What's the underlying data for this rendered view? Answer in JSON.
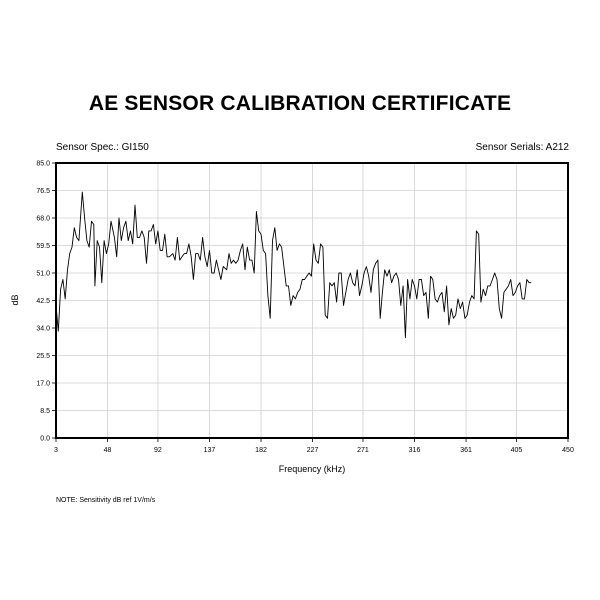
{
  "header": {
    "title": "AE SENSOR CALIBRATION CERTIFICATE",
    "sensor_spec": "Sensor Spec.: GI150",
    "sensor_serials": "Sensor Serials: A212"
  },
  "footer": {
    "note": "NOTE:  Sensitivity dB ref 1V/m/s"
  },
  "chart_data": {
    "type": "line",
    "xlabel": "Frequency (kHz)",
    "ylabel": "dB",
    "xlim": [
      3,
      450
    ],
    "ylim": [
      0,
      85
    ],
    "x_ticks": [
      3,
      48,
      92,
      137,
      182,
      227,
      271,
      316,
      361,
      405,
      450
    ],
    "y_ticks": [
      0.0,
      8.5,
      17.0,
      25.5,
      34.0,
      42.5,
      51.0,
      59.5,
      68.0,
      76.5,
      85.0
    ],
    "x_tick_labels": [
      "3",
      "48",
      "92",
      "137",
      "182",
      "227",
      "271",
      "316",
      "361",
      "405",
      "450"
    ],
    "y_tick_labels": [
      "0.0",
      "8.5",
      "17.0",
      "25.5",
      "34.0",
      "42.5",
      "51.0",
      "59.5",
      "68.0",
      "76.5",
      "85.0"
    ],
    "grid": true,
    "series": [
      {
        "values": [
          [
            3,
            41
          ],
          [
            5,
            33
          ],
          [
            7,
            46
          ],
          [
            9,
            49
          ],
          [
            11,
            43
          ],
          [
            13,
            52
          ],
          [
            15,
            57
          ],
          [
            17,
            59
          ],
          [
            19,
            65
          ],
          [
            21,
            62
          ],
          [
            23,
            61
          ],
          [
            26,
            76
          ],
          [
            28,
            68
          ],
          [
            30,
            61
          ],
          [
            32,
            59
          ],
          [
            34,
            67
          ],
          [
            36,
            66
          ],
          [
            37,
            47
          ],
          [
            39,
            61
          ],
          [
            41,
            59
          ],
          [
            43,
            48
          ],
          [
            45,
            61
          ],
          [
            47,
            57
          ],
          [
            49,
            60
          ],
          [
            51,
            67
          ],
          [
            54,
            62
          ],
          [
            56,
            56
          ],
          [
            58,
            68
          ],
          [
            60,
            61
          ],
          [
            62,
            65
          ],
          [
            64,
            67
          ],
          [
            66,
            61
          ],
          [
            68,
            64
          ],
          [
            70,
            60
          ],
          [
            72,
            72
          ],
          [
            74,
            62
          ],
          [
            76,
            62
          ],
          [
            78,
            64
          ],
          [
            80,
            62
          ],
          [
            82,
            54
          ],
          [
            84,
            64
          ],
          [
            86,
            64
          ],
          [
            88,
            66
          ],
          [
            90,
            60
          ],
          [
            92,
            64
          ],
          [
            94,
            58
          ],
          [
            96,
            58
          ],
          [
            98,
            63
          ],
          [
            100,
            56
          ],
          [
            102,
            56
          ],
          [
            105,
            57
          ],
          [
            107,
            55
          ],
          [
            109,
            62
          ],
          [
            111,
            55
          ],
          [
            113,
            56
          ],
          [
            115,
            57
          ],
          [
            117,
            57
          ],
          [
            119,
            60
          ],
          [
            121,
            56
          ],
          [
            123,
            49
          ],
          [
            125,
            57
          ],
          [
            127,
            57
          ],
          [
            129,
            55
          ],
          [
            131,
            62
          ],
          [
            133,
            56
          ],
          [
            135,
            53
          ],
          [
            137,
            58
          ],
          [
            139,
            51
          ],
          [
            141,
            51
          ],
          [
            143,
            55
          ],
          [
            145,
            52
          ],
          [
            147,
            49
          ],
          [
            149,
            53
          ],
          [
            152,
            52
          ],
          [
            154,
            57
          ],
          [
            156,
            54
          ],
          [
            158,
            55
          ],
          [
            160,
            54
          ],
          [
            162,
            55
          ],
          [
            164,
            58
          ],
          [
            166,
            60
          ],
          [
            168,
            52
          ],
          [
            170,
            59
          ],
          [
            172,
            55
          ],
          [
            174,
            55
          ],
          [
            176,
            51
          ],
          [
            178,
            70
          ],
          [
            180,
            64
          ],
          [
            182,
            63
          ],
          [
            184,
            58
          ],
          [
            186,
            57
          ],
          [
            188,
            44
          ],
          [
            190,
            37
          ],
          [
            192,
            61
          ],
          [
            194,
            65
          ],
          [
            196,
            58
          ],
          [
            198,
            60
          ],
          [
            200,
            59
          ],
          [
            202,
            53
          ],
          [
            204,
            47
          ],
          [
            206,
            47
          ],
          [
            208,
            41
          ],
          [
            210,
            44
          ],
          [
            212,
            43
          ],
          [
            214,
            45
          ],
          [
            216,
            46
          ],
          [
            218,
            49
          ],
          [
            220,
            49
          ],
          [
            222,
            50
          ],
          [
            224,
            51
          ],
          [
            226,
            50
          ],
          [
            228,
            60
          ],
          [
            230,
            55
          ],
          [
            232,
            54
          ],
          [
            234,
            60
          ],
          [
            236,
            59
          ],
          [
            238,
            38
          ],
          [
            240,
            37
          ],
          [
            242,
            48
          ],
          [
            244,
            47
          ],
          [
            246,
            48
          ],
          [
            248,
            42
          ],
          [
            250,
            51
          ],
          [
            252,
            51
          ],
          [
            254,
            41
          ],
          [
            256,
            45
          ],
          [
            258,
            49
          ],
          [
            260,
            51
          ],
          [
            262,
            48
          ],
          [
            264,
            47
          ],
          [
            266,
            52
          ],
          [
            268,
            44
          ],
          [
            270,
            47
          ],
          [
            272,
            51
          ],
          [
            274,
            53
          ],
          [
            276,
            50
          ],
          [
            278,
            45
          ],
          [
            280,
            52
          ],
          [
            282,
            54
          ],
          [
            284,
            55
          ],
          [
            286,
            37
          ],
          [
            288,
            45
          ],
          [
            290,
            52
          ],
          [
            292,
            50
          ],
          [
            294,
            52
          ],
          [
            296,
            48
          ],
          [
            298,
            50
          ],
          [
            300,
            51
          ],
          [
            302,
            49
          ],
          [
            304,
            41
          ],
          [
            306,
            47
          ],
          [
            308,
            31
          ],
          [
            310,
            49
          ],
          [
            312,
            43
          ],
          [
            314,
            49
          ],
          [
            316,
            47
          ],
          [
            318,
            43
          ],
          [
            320,
            49
          ],
          [
            322,
            49
          ],
          [
            324,
            44
          ],
          [
            326,
            45
          ],
          [
            328,
            37
          ],
          [
            330,
            50
          ],
          [
            332,
            49
          ],
          [
            334,
            43
          ],
          [
            336,
            42
          ],
          [
            338,
            44
          ],
          [
            340,
            45
          ],
          [
            342,
            39
          ],
          [
            344,
            47
          ],
          [
            346,
            35
          ],
          [
            348,
            40
          ],
          [
            350,
            37
          ],
          [
            352,
            38
          ],
          [
            354,
            43
          ],
          [
            356,
            40
          ],
          [
            358,
            42
          ],
          [
            360,
            37
          ],
          [
            362,
            38
          ],
          [
            364,
            42
          ],
          [
            366,
            44
          ],
          [
            368,
            43
          ],
          [
            370,
            64
          ],
          [
            372,
            63
          ],
          [
            374,
            42
          ],
          [
            376,
            46
          ],
          [
            378,
            44
          ],
          [
            380,
            47
          ],
          [
            382,
            47
          ],
          [
            384,
            49
          ],
          [
            386,
            51
          ],
          [
            388,
            49
          ],
          [
            390,
            40
          ],
          [
            392,
            37
          ],
          [
            394,
            45
          ],
          [
            396,
            46
          ],
          [
            398,
            47
          ],
          [
            400,
            49
          ],
          [
            402,
            44
          ],
          [
            404,
            45
          ],
          [
            406,
            47
          ],
          [
            408,
            48
          ],
          [
            410,
            43
          ],
          [
            412,
            43
          ],
          [
            414,
            49
          ],
          [
            416,
            48
          ],
          [
            418,
            48
          ]
        ]
      }
    ]
  }
}
